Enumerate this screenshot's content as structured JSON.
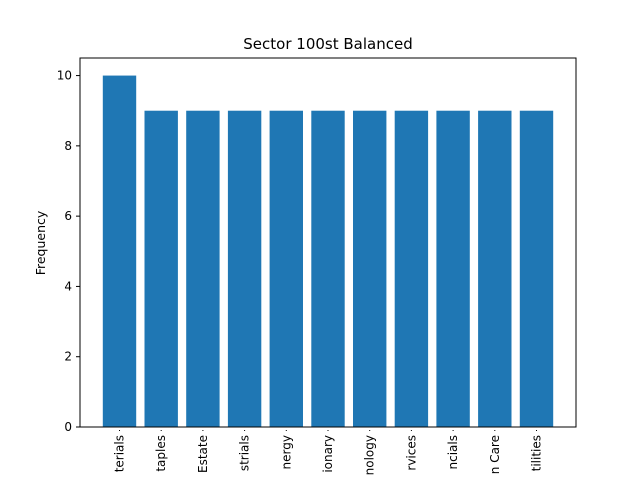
{
  "chart_data": {
    "type": "bar",
    "title": "Sector 100st Balanced",
    "xlabel": "",
    "ylabel": "Frequency",
    "categories": [
      "terials",
      "taples",
      "Estate",
      "strials",
      "nergy",
      "ionary",
      "nology",
      "rvices",
      "ncials",
      "n Care",
      "tilities"
    ],
    "values": [
      10,
      9,
      9,
      9,
      9,
      9,
      9,
      9,
      9,
      9,
      9
    ],
    "ylim": [
      0,
      10.5
    ],
    "yticks": [
      0,
      2,
      4,
      6,
      8,
      10
    ],
    "grid": false,
    "bar_color": "#1f77b4"
  }
}
